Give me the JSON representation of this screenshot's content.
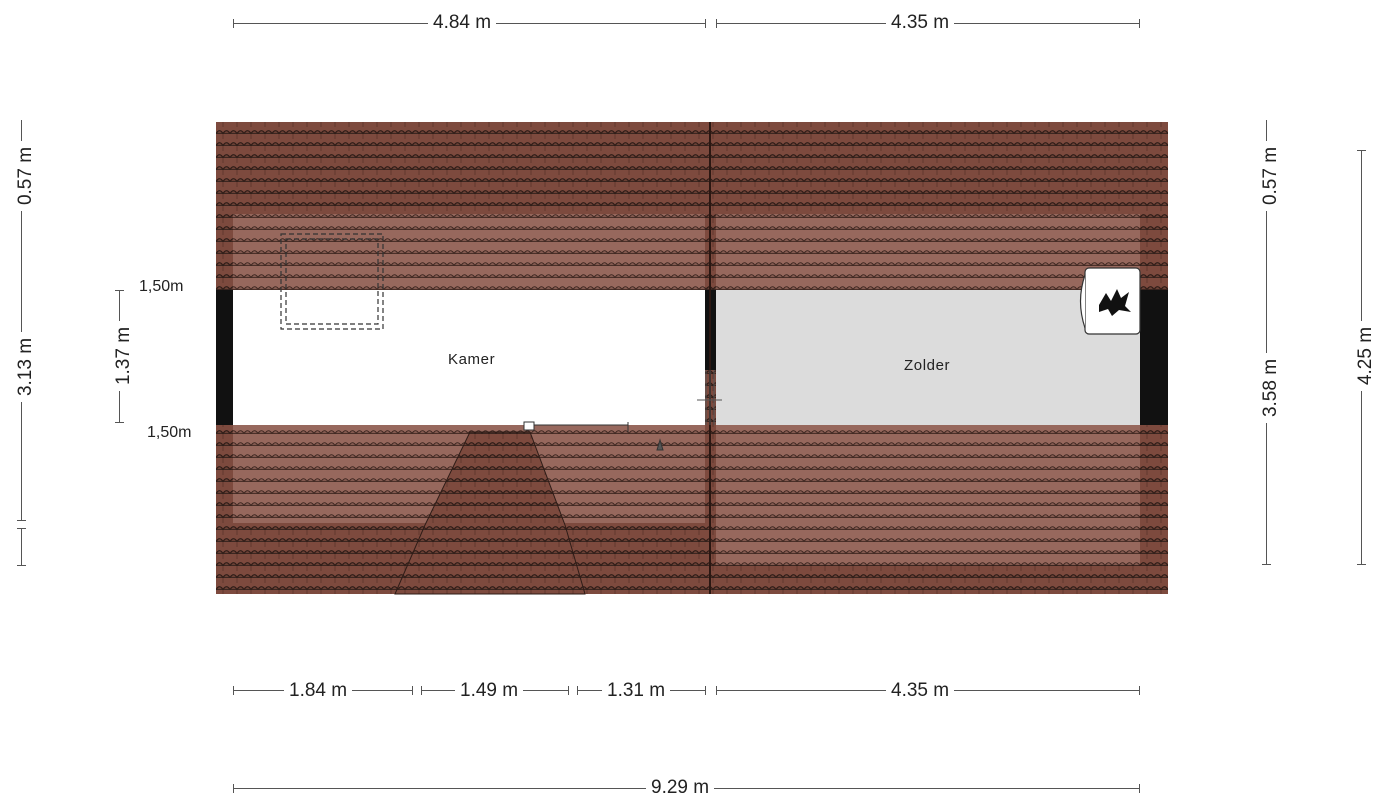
{
  "dimensions": {
    "top": [
      "4.84 m",
      "4.35 m"
    ],
    "bottom_segments": [
      "1.84 m",
      "1.49 m",
      "1.31 m",
      "4.35 m"
    ],
    "bottom_total": "9.29 m",
    "left_outer": [
      "0.57 m",
      "3.13 m"
    ],
    "left_inner": "1.37 m",
    "right_inner": [
      "0.57 m",
      "3.58 m"
    ],
    "right_outer": "4.25 m",
    "height_marks": [
      "1,50m",
      "1,50m"
    ]
  },
  "rooms": {
    "left": "Kamer",
    "right": "Zolder"
  },
  "colors": {
    "roof": "#7d4a3e",
    "roof_light": "#98655a",
    "tile_line": "#3b2620",
    "wall": "#111111",
    "attic_floor": "#dcdcdc",
    "room_floor": "#ffffff"
  },
  "icons": [
    "boiler-icon",
    "skylight-icon",
    "stair-hatch-icon"
  ]
}
